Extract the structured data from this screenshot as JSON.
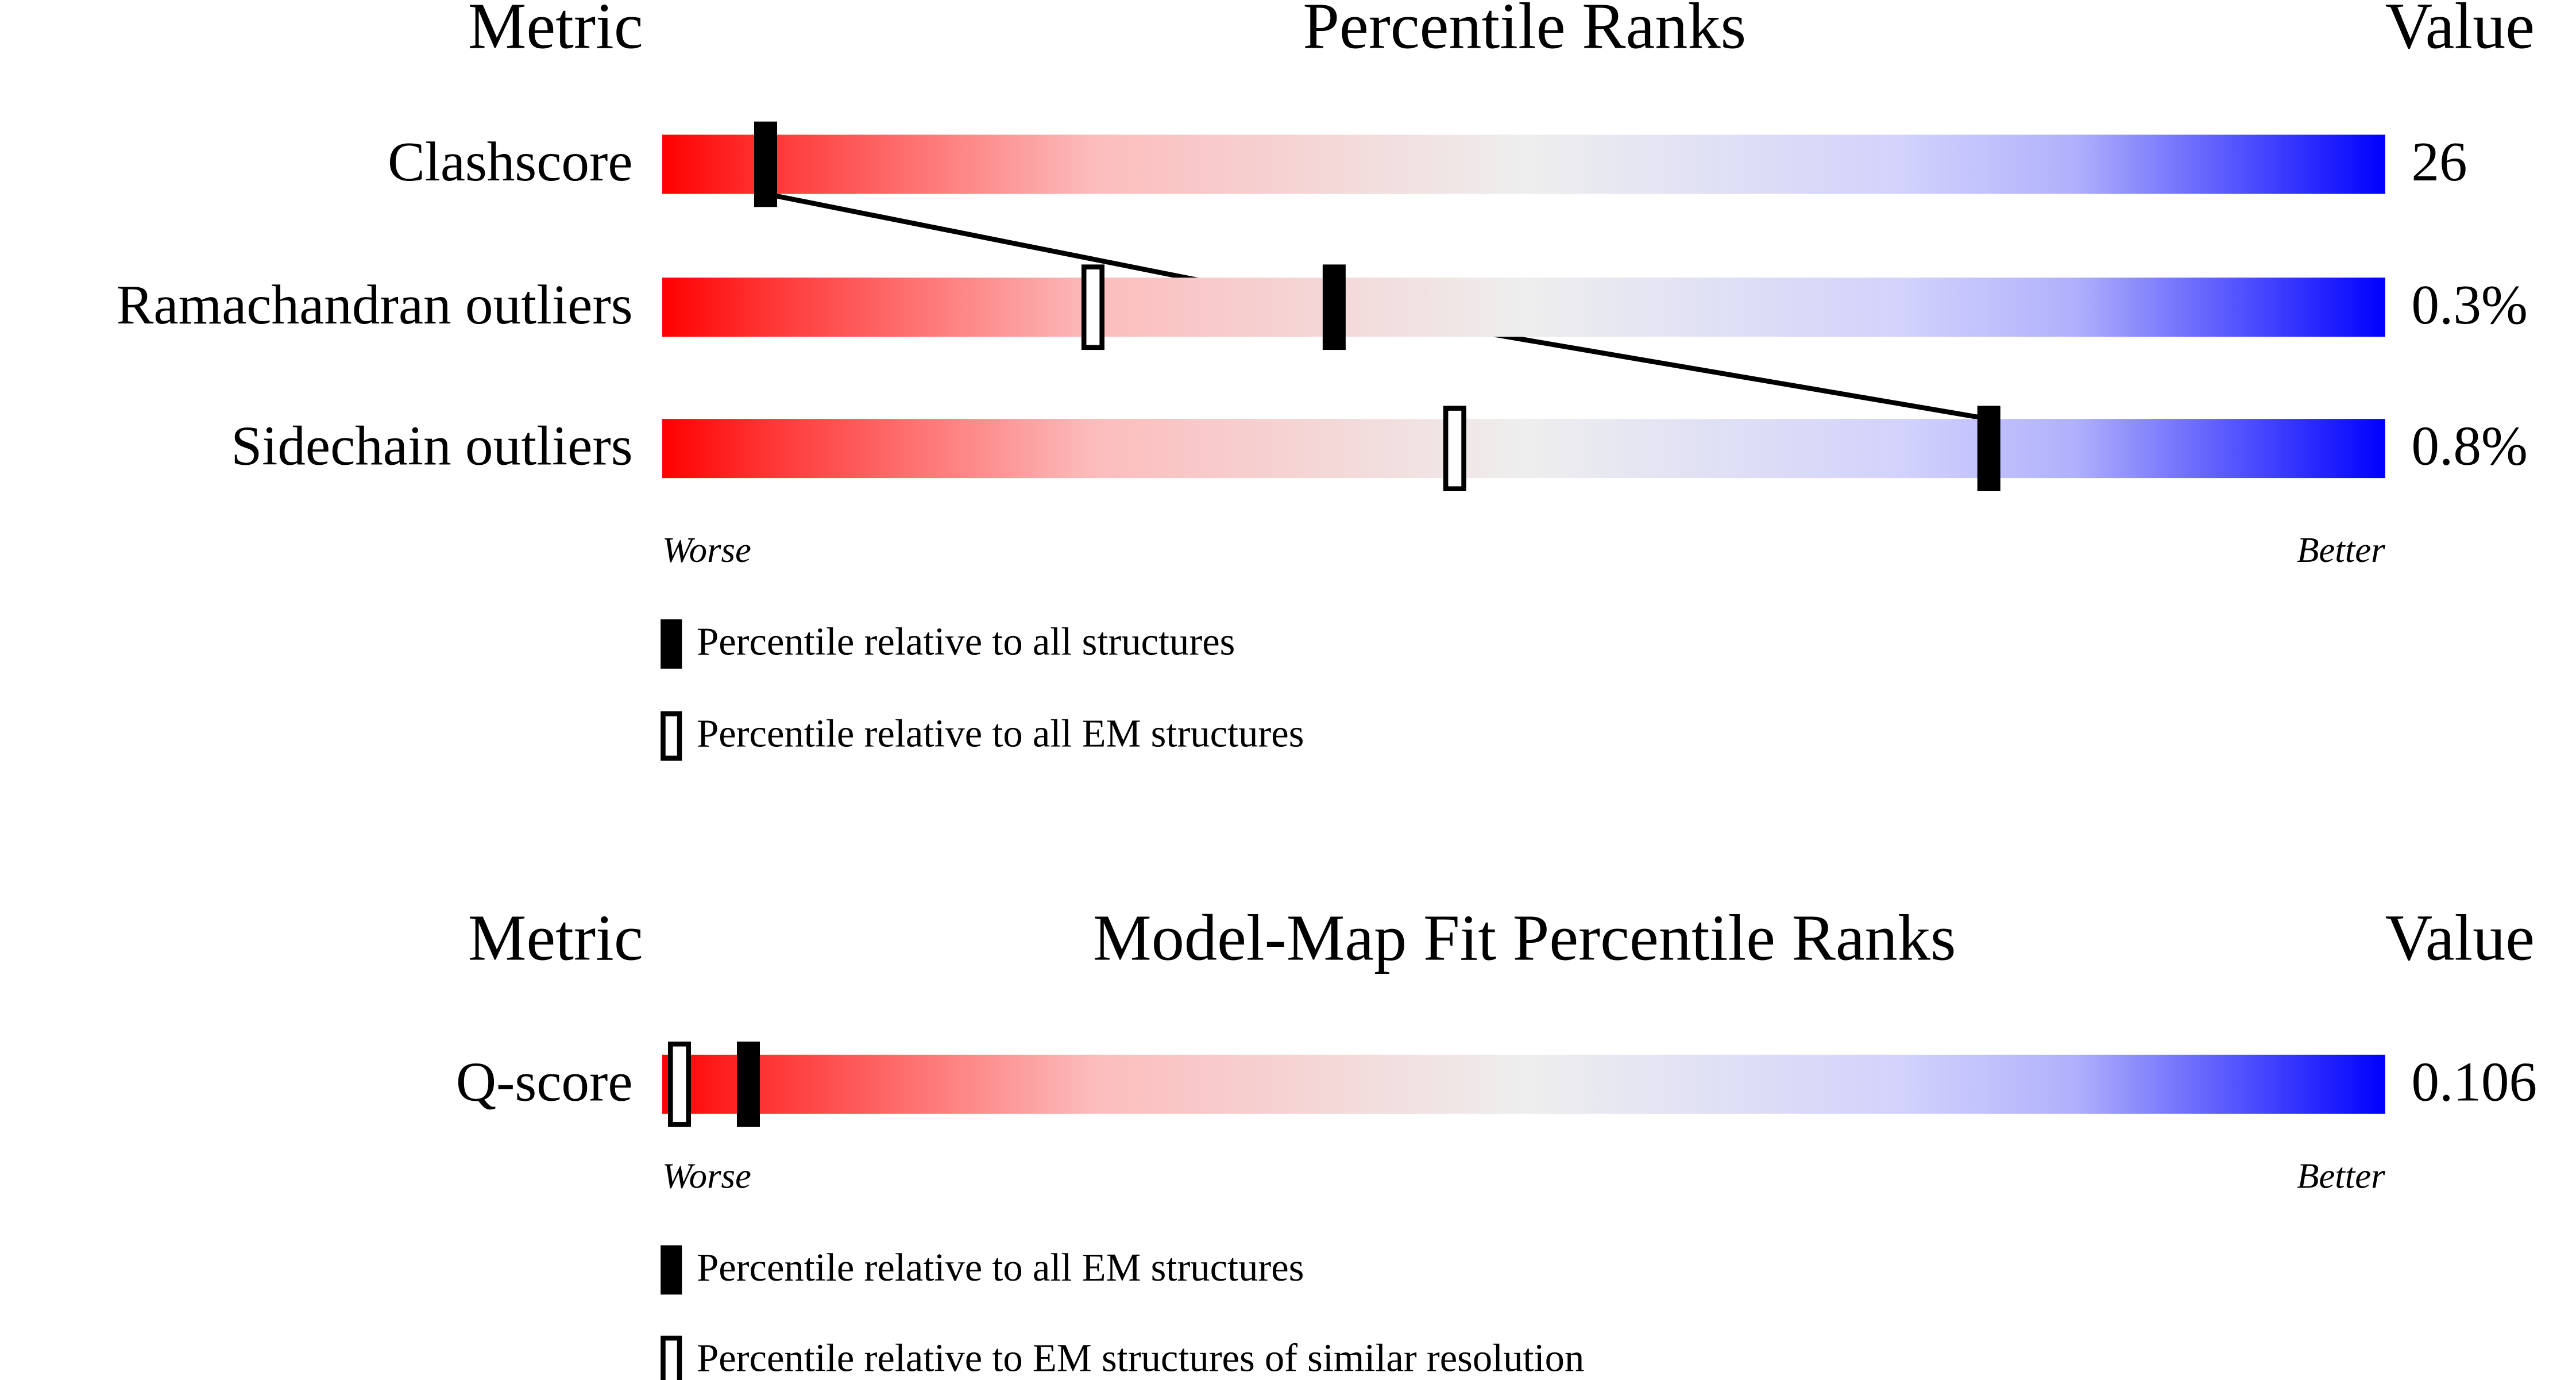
{
  "panels": [
    {
      "headers": {
        "metric": "Metric",
        "title": "Percentile Ranks",
        "value": "Value"
      },
      "percentile_range": [
        0,
        100
      ],
      "rows": [
        {
          "metric": "Clashscore",
          "value": "26",
          "percentiles": [
            6,
            null
          ]
        },
        {
          "metric": "Ramachandran outliers",
          "value": "0.3%",
          "percentiles": [
            39,
            25
          ]
        },
        {
          "metric": "Sidechain outliers",
          "value": "0.8%",
          "percentiles": [
            77,
            46
          ]
        }
      ],
      "scale": {
        "worse": "Worse",
        "better": "Better"
      },
      "legend": [
        "Percentile relative to all structures",
        "Percentile relative to all EM structures"
      ]
    },
    {
      "headers": {
        "metric": "Metric",
        "title": "Model-Map Fit Percentile Ranks",
        "value": "Value"
      },
      "percentile_range": [
        0,
        100
      ],
      "rows": [
        {
          "metric": "Q-score",
          "value": "0.106",
          "percentiles": [
            5,
            1
          ]
        }
      ],
      "scale": {
        "worse": "Worse",
        "better": "Better"
      },
      "legend": [
        "Percentile relative to all EM structures",
        "Percentile relative to EM structures of similar resolution"
      ]
    }
  ]
}
